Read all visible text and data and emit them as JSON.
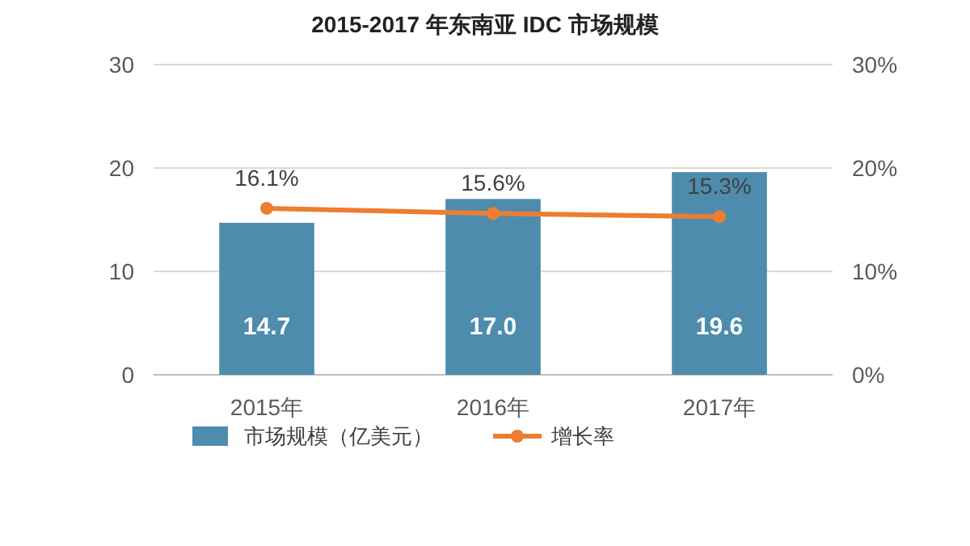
{
  "chart_data": {
    "type": "bar",
    "title": "2015-2017 年东南亚 IDC 市场规模",
    "categories": [
      "2015年",
      "2016年",
      "2017年"
    ],
    "series": [
      {
        "name": "市场规模（亿美元）",
        "color": "#4d8cad",
        "values": [
          14.7,
          17.0,
          19.6
        ],
        "value_labels": [
          "14.7",
          "17.0",
          "19.6"
        ]
      },
      {
        "name": "增长率",
        "type": "line",
        "axis": "y2",
        "color": "#ed7d31",
        "values": [
          16.1,
          15.6,
          15.3
        ],
        "value_labels": [
          "16.1%",
          "15.6%",
          "15.3%"
        ]
      }
    ],
    "ylim": [
      0,
      30
    ],
    "yticks": [
      0,
      10,
      20,
      30
    ],
    "y2lim": [
      0,
      30
    ],
    "y2ticks": [
      {
        "value": 0,
        "label": "0%"
      },
      {
        "value": 10,
        "label": "10%"
      },
      {
        "value": 20,
        "label": "20%"
      },
      {
        "value": 30,
        "label": "30%"
      }
    ],
    "grid": "y",
    "legend": "bottom",
    "marker": "circle",
    "line_style": "solid"
  }
}
